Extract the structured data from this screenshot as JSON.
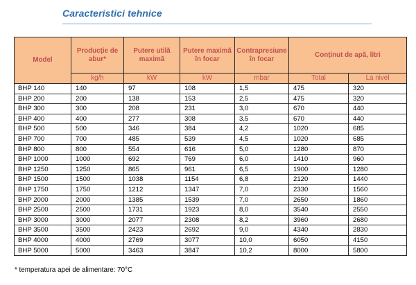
{
  "title": "Caracteristici tehnice",
  "table": {
    "headers": {
      "model": "Model",
      "steam_production": "Producție de abur*",
      "useful_power": "Putere utilă maximă",
      "max_power_focus": "Putere maximă în focar",
      "back_pressure": "Contrapresiune în focar",
      "water_content": "Conținut de apă, litri"
    },
    "units": {
      "steam_production": "kg/h",
      "useful_power": "kW",
      "max_power_focus": "kW",
      "back_pressure": "mbar",
      "total": "Total",
      "level": "La nivel"
    },
    "rows": [
      [
        "BHP 140",
        "140",
        "97",
        "108",
        "1,5",
        "475",
        "320"
      ],
      [
        "BHP 200",
        "200",
        "138",
        "153",
        "2,5",
        "475",
        "320"
      ],
      [
        "BHP 300",
        "300",
        "208",
        "231",
        "3,0",
        "670",
        "440"
      ],
      [
        "BHP 400",
        "400",
        "277",
        "308",
        "3,5",
        "670",
        "440"
      ],
      [
        "BHP 500",
        "500",
        "346",
        "384",
        "4,2",
        "1020",
        "685"
      ],
      [
        "BHP 700",
        "700",
        "485",
        "539",
        "4,5",
        "1020",
        "685"
      ],
      [
        "BHP 800",
        "800",
        "554",
        "616",
        "5,0",
        "1280",
        "870"
      ],
      [
        "BHP 1000",
        "1000",
        "692",
        "769",
        "6,0",
        "1410",
        "960"
      ],
      [
        "BHP 1250",
        "1250",
        "865",
        "961",
        "6,5",
        "1900",
        "1280"
      ],
      [
        "BHP 1500",
        "1500",
        "1038",
        "1154",
        "6,8",
        "2120",
        "1440"
      ],
      [
        "BHP 1750",
        "1750",
        "1212",
        "1347",
        "7,0",
        "2330",
        "1560"
      ],
      [
        "BHP 2000",
        "2000",
        "1385",
        "1539",
        "7,0",
        "2650",
        "1860"
      ],
      [
        "BHP 2500",
        "2500",
        "1731",
        "1923",
        "8,0",
        "3540",
        "2550"
      ],
      [
        "BHP 3000",
        "3000",
        "2077",
        "2308",
        "8,2",
        "3960",
        "2680"
      ],
      [
        "BHP 3500",
        "3500",
        "2423",
        "2692",
        "9,0",
        "4340",
        "2830"
      ],
      [
        "BHP 4000",
        "4000",
        "2769",
        "3077",
        "10,0",
        "6050",
        "4150"
      ],
      [
        "BHP 5000",
        "5000",
        "3463",
        "3847",
        "10,2",
        "8000",
        "5800"
      ]
    ]
  },
  "footnote": "* temperatura apei de alimentare: 70°C"
}
